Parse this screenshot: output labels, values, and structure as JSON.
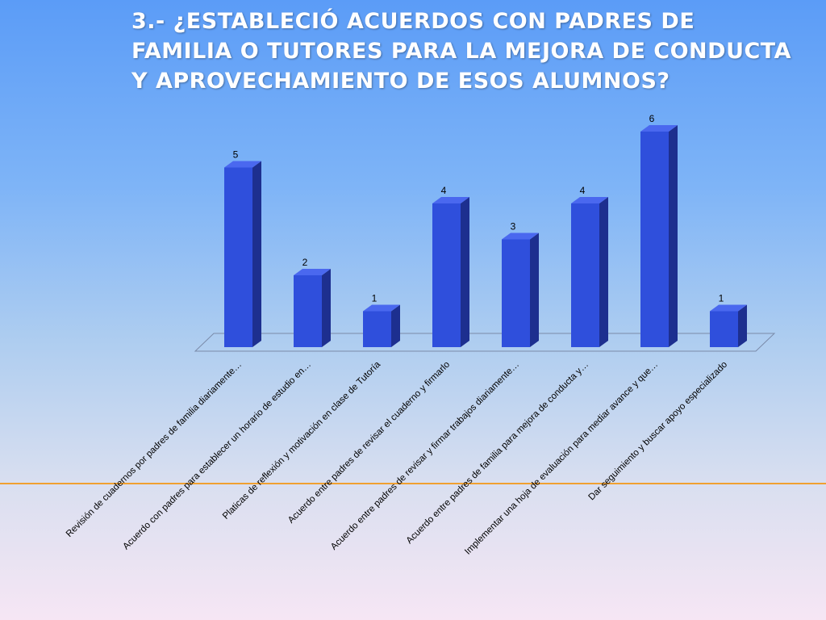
{
  "title": "3.- ¿Estableció acuerdos con padres de familia o tutores para la mejora de conducta y aprovechamiento de esos alumnos?",
  "colors": {
    "bar_front": "#2f4fdc",
    "bar_side": "#1d2f8f",
    "bar_top": "#4a68ef",
    "accent_line": "#f0a030"
  },
  "chart_data": {
    "type": "bar",
    "categories": [
      "Revisión de cuadernos por padres de familia diariamente…",
      "Acuerdo con padres para establecer un horario de estudio en…",
      "Platicas de reflexión y motivación en clase de Tutoría",
      "Acuerdo entre padres de revisar el cuaderno y firmarlo",
      "Acuerdo entre padres de revisar y firmar trabajos diariamente…",
      "Acuerdo entre padres de familia para mejora de conducta y…",
      "Implementar una hoja de evaluación para mediar avance y que…",
      "Dar seguimiento y buscar apoyo especializado"
    ],
    "values": [
      5,
      2,
      1,
      4,
      3,
      4,
      6,
      1
    ],
    "data_labels": [
      "5",
      "2",
      "1",
      "4",
      "3",
      "4",
      "6",
      "1"
    ],
    "ylim": [
      0,
      6
    ],
    "grid": false,
    "legend": "none",
    "style": "3d-bar"
  }
}
